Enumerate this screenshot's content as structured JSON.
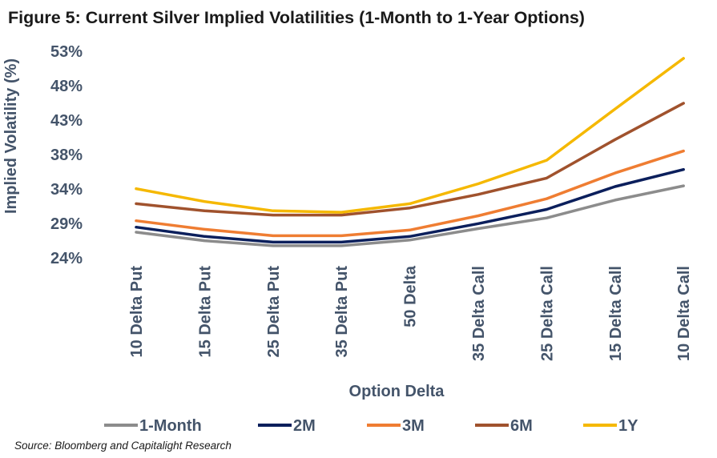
{
  "title": "Figure 5: Current Silver Implied Volatilities (1-Month to 1-Year Options)",
  "source": "Source: Bloomberg and Capitalight Research",
  "chart_data": {
    "type": "line",
    "title": "Figure 5: Current Silver Implied Volatilities (1-Month to 1-Year Options)",
    "xlabel": "Option Delta",
    "ylabel": "Implied Volatility (%)",
    "y_ticks": [
      "24%",
      "29%",
      "34%",
      "38%",
      "43%",
      "48%",
      "53%"
    ],
    "ylim": [
      24,
      53
    ],
    "grid": false,
    "legend_position": "bottom",
    "categories": [
      "10 Delta Put",
      "15 Delta Put",
      "25 Delta Put",
      "35 Delta Put",
      "50 Delta",
      "35 Delta Call",
      "25 Delta Call",
      "15 Delta Call",
      "10 Delta Call"
    ],
    "series": [
      {
        "name": "1-Month",
        "color": "#8c8c8c",
        "values": [
          27.6,
          26.4,
          25.7,
          25.7,
          26.5,
          28.1,
          29.6,
          32.1,
          34.1
        ]
      },
      {
        "name": "2M",
        "color": "#0b1f5c",
        "values": [
          28.3,
          27.0,
          26.2,
          26.2,
          27.0,
          28.8,
          30.8,
          34.0,
          36.4
        ]
      },
      {
        "name": "3M",
        "color": "#ef7d32",
        "values": [
          29.2,
          28.0,
          27.1,
          27.1,
          27.9,
          29.9,
          32.3,
          35.9,
          39.0
        ]
      },
      {
        "name": "6M",
        "color": "#a0522d",
        "values": [
          31.6,
          30.6,
          30.0,
          30.0,
          31.0,
          32.9,
          35.2,
          40.6,
          45.7
        ]
      },
      {
        "name": "1Y",
        "color": "#f5b800",
        "values": [
          33.7,
          31.9,
          30.6,
          30.4,
          31.6,
          34.4,
          37.7,
          44.9,
          52.0
        ]
      }
    ]
  }
}
